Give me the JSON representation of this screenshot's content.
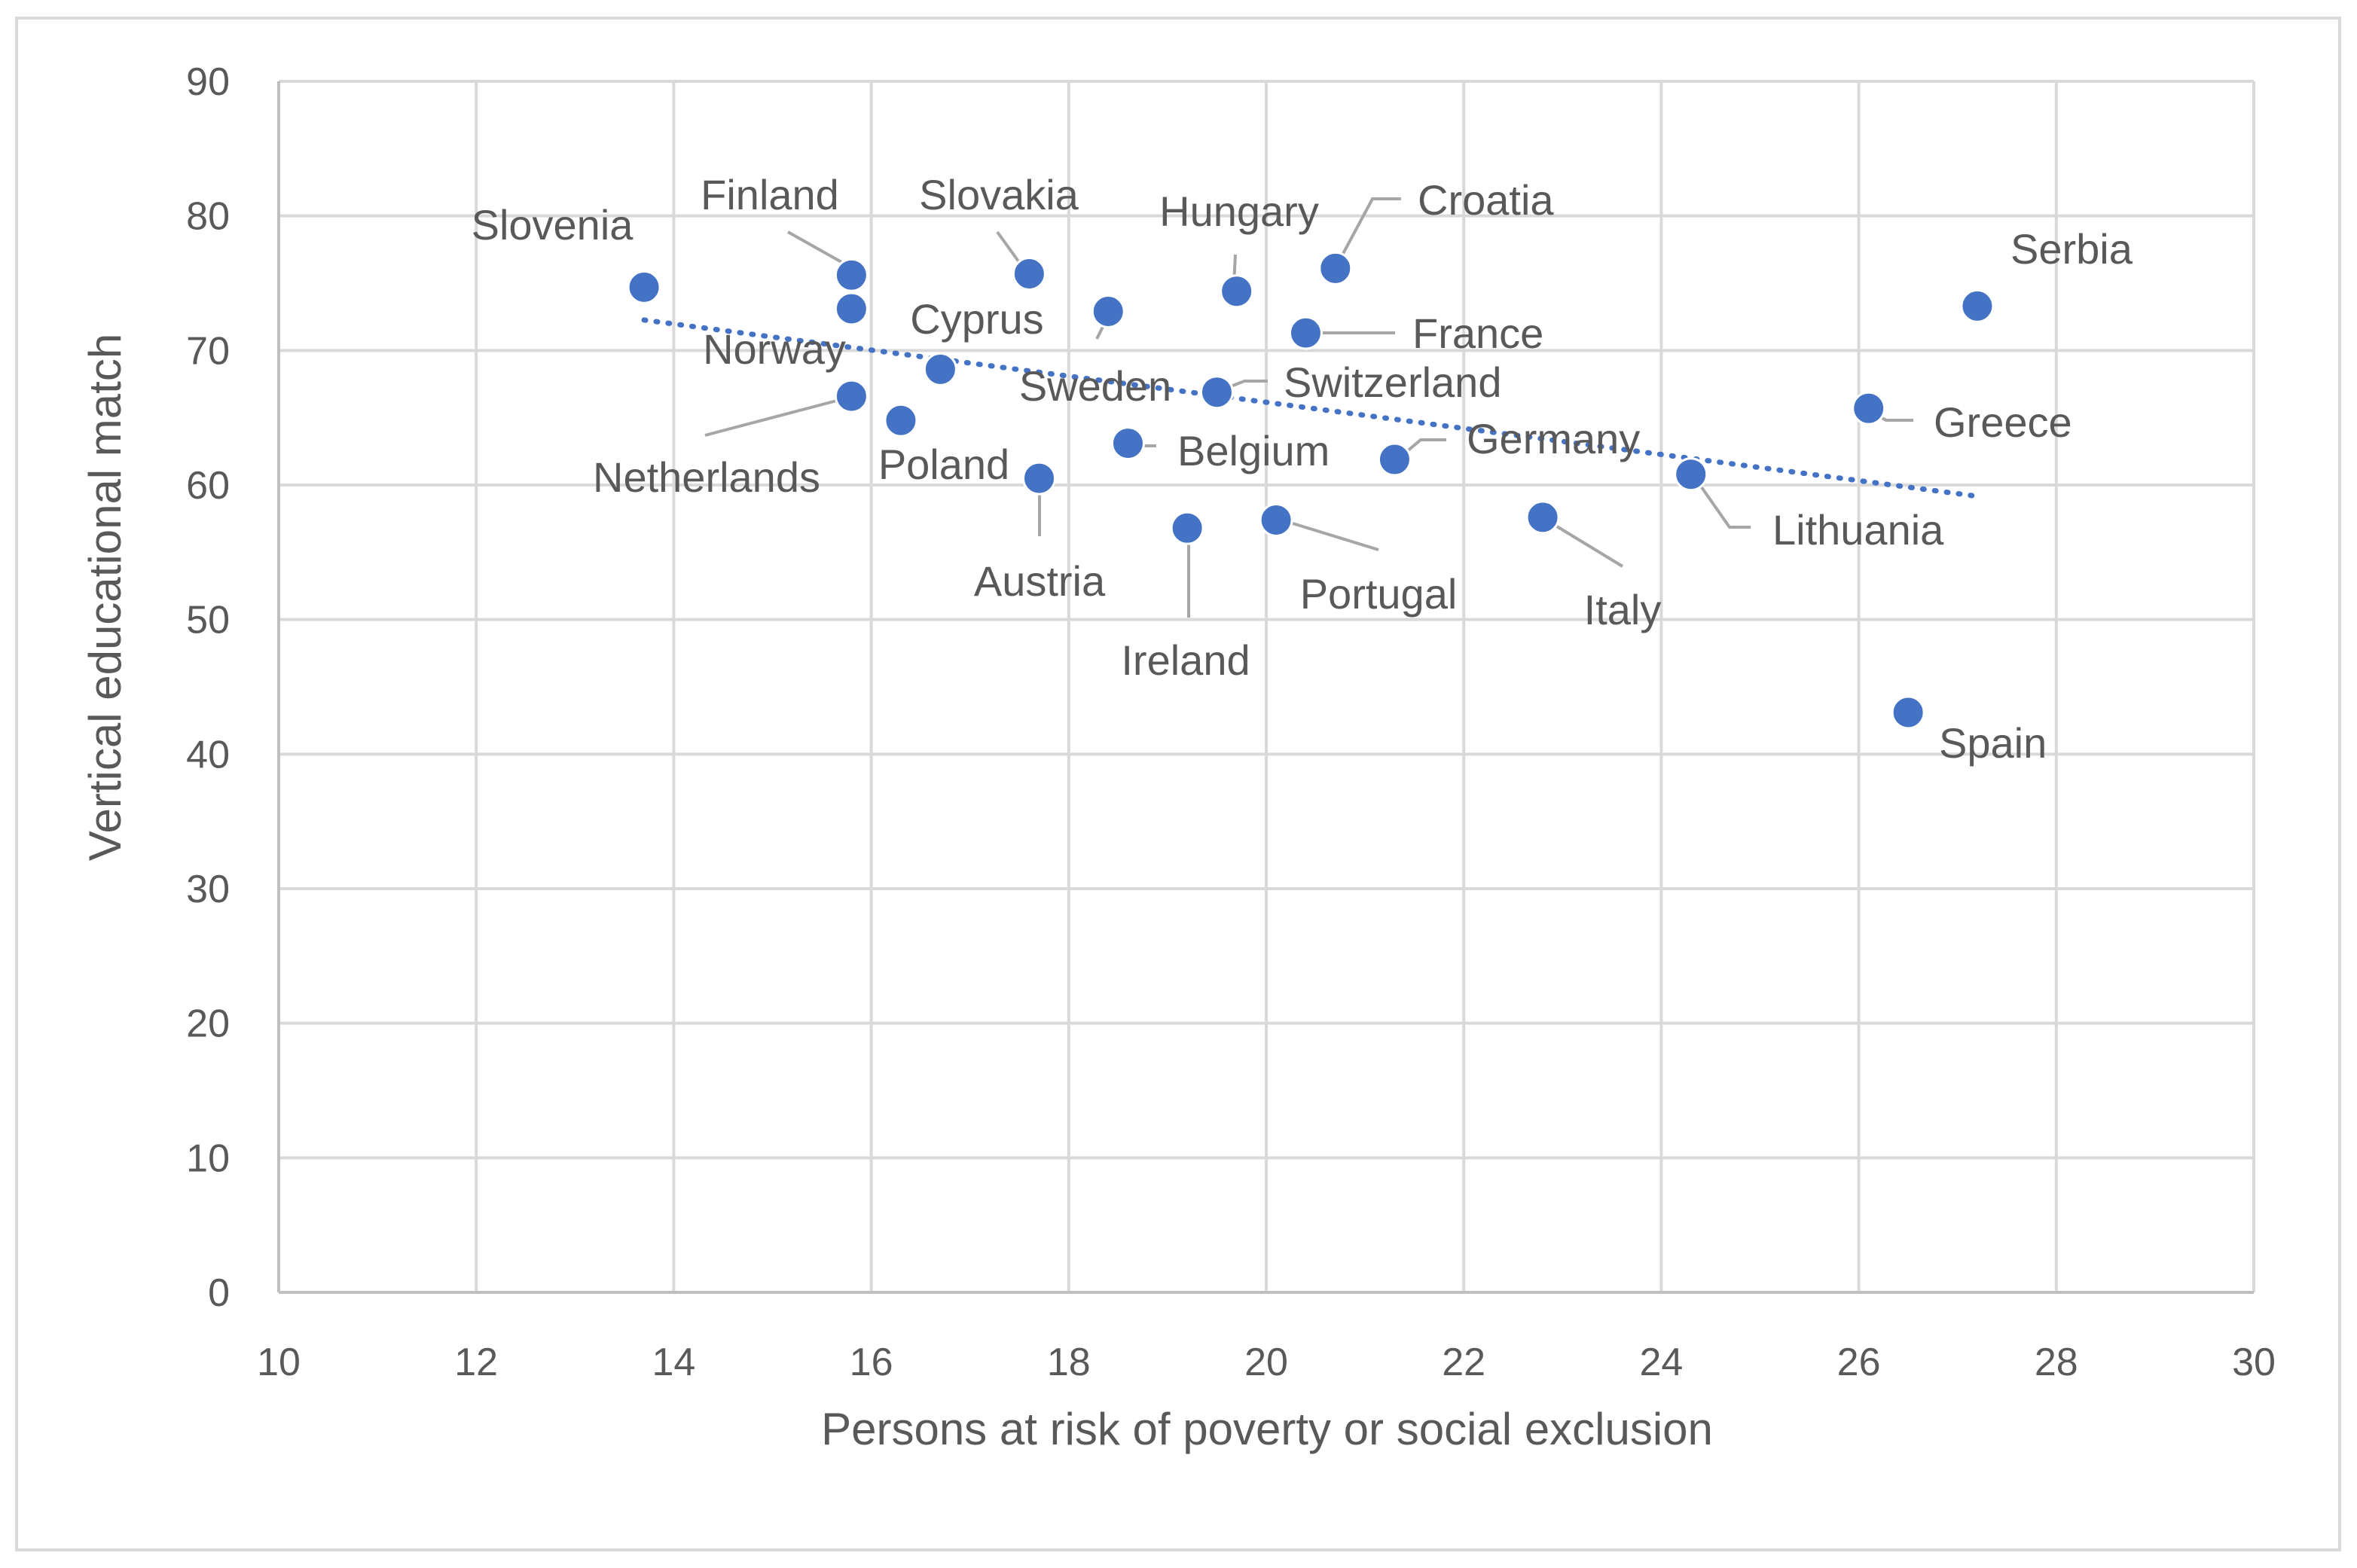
{
  "chart_data": {
    "type": "scatter",
    "title": "",
    "xlabel": "Persons at risk of poverty or social exclusion",
    "ylabel": "Vertical educational match",
    "xlim": [
      10,
      30
    ],
    "ylim": [
      0,
      90
    ],
    "xticks": [
      10,
      12,
      14,
      16,
      18,
      20,
      22,
      24,
      26,
      28,
      30
    ],
    "yticks": [
      0,
      10,
      20,
      30,
      40,
      50,
      60,
      70,
      80,
      90
    ],
    "grid": true,
    "point_color": "#4472c4",
    "trendline": {
      "type": "linear",
      "style": "dotted",
      "color": "#4472c4",
      "x_start": 13.7,
      "x_end": 27.2
    },
    "points": [
      {
        "label": "Slovenia",
        "x": 13.7,
        "y": 74.7
      },
      {
        "label": "Finland",
        "x": 15.8,
        "y": 75.6
      },
      {
        "label": "Norway",
        "x": 15.8,
        "y": 73.1
      },
      {
        "label": "Netherlands",
        "x": 15.8,
        "y": 66.6
      },
      {
        "label": "Poland",
        "x": 16.3,
        "y": 64.8
      },
      {
        "label": "Cyprus",
        "x": 16.7,
        "y": 68.6
      },
      {
        "label": "Slovakia",
        "x": 17.6,
        "y": 75.7
      },
      {
        "label": "Austria",
        "x": 17.7,
        "y": 60.5
      },
      {
        "label": "Sweden",
        "x": 18.4,
        "y": 72.9
      },
      {
        "label": "Belgium",
        "x": 18.6,
        "y": 63.1
      },
      {
        "label": "Ireland",
        "x": 19.2,
        "y": 56.8
      },
      {
        "label": "Switzerland",
        "x": 19.5,
        "y": 66.9
      },
      {
        "label": "Hungary",
        "x": 19.7,
        "y": 74.4
      },
      {
        "label": "Portugal",
        "x": 20.1,
        "y": 57.4
      },
      {
        "label": "France",
        "x": 20.4,
        "y": 71.3
      },
      {
        "label": "Croatia",
        "x": 20.7,
        "y": 76.1
      },
      {
        "label": "Germany",
        "x": 21.3,
        "y": 61.9
      },
      {
        "label": "Italy",
        "x": 22.8,
        "y": 57.6
      },
      {
        "label": "Lithuania",
        "x": 24.3,
        "y": 60.8
      },
      {
        "label": "Greece",
        "x": 26.1,
        "y": 65.7
      },
      {
        "label": "Spain",
        "x": 26.5,
        "y": 43.1
      },
      {
        "label": "Serbia",
        "x": 27.2,
        "y": 73.3
      }
    ]
  }
}
